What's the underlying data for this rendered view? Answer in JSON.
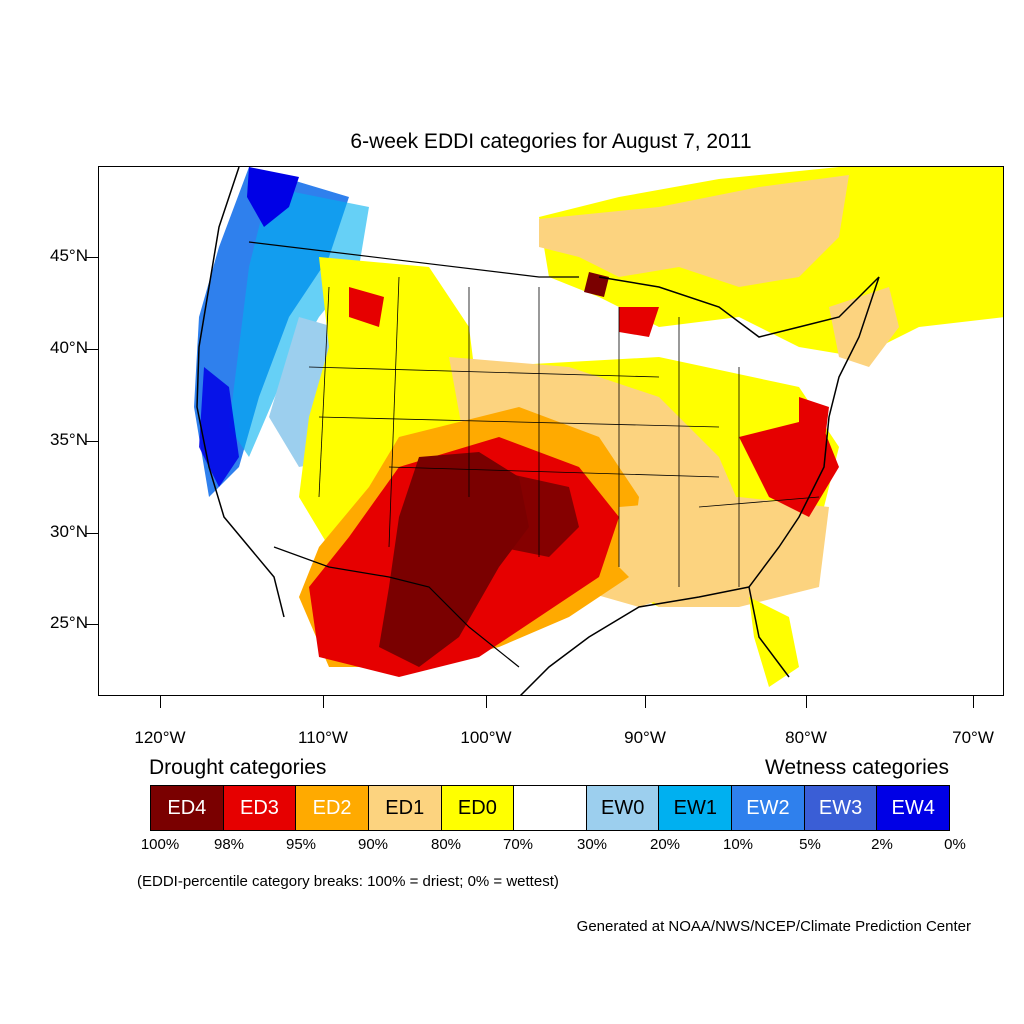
{
  "title": "6-week EDDI categories for August 7, 2011",
  "lat_labels": [
    "45°N",
    "40°N",
    "35°N",
    "30°N",
    "25°N"
  ],
  "lon_labels": [
    "120°W",
    "110°W",
    "100°W",
    "90°W",
    "80°W",
    "70°W"
  ],
  "legend": {
    "drought_title": "Drought categories",
    "wetness_title": "Wetness categories",
    "categories": [
      {
        "label": "ED4",
        "color": "#7a0000",
        "text_color": "#ffffff"
      },
      {
        "label": "ED3",
        "color": "#e60000",
        "text_color": "#ffffff"
      },
      {
        "label": "ED2",
        "color": "#ffaa00",
        "text_color": "#ffffff"
      },
      {
        "label": "ED1",
        "color": "#fcd37f",
        "text_color": "#000000"
      },
      {
        "label": "ED0",
        "color": "#ffff00",
        "text_color": "#000000"
      },
      {
        "label": "",
        "color": "#ffffff",
        "text_color": "#000000"
      },
      {
        "label": "EW0",
        "color": "#9ccfee",
        "text_color": "#000000"
      },
      {
        "label": "EW1",
        "color": "#00b0f0",
        "text_color": "#000000"
      },
      {
        "label": "EW2",
        "color": "#2f80ed",
        "text_color": "#ffffff"
      },
      {
        "label": "EW3",
        "color": "#3a5ed6",
        "text_color": "#ffffff"
      },
      {
        "label": "EW4",
        "color": "#0000e6",
        "text_color": "#ffffff"
      }
    ],
    "breaks": [
      "100%",
      "98%",
      "95%",
      "90%",
      "80%",
      "70%",
      "30%",
      "20%",
      "10%",
      "5%",
      "2%",
      "0%"
    ]
  },
  "note": "(EDDI-percentile category breaks: 100% = driest; 0% = wettest)",
  "credit": "Generated at NOAA/NWS/NCEP/Climate Prediction Center"
}
